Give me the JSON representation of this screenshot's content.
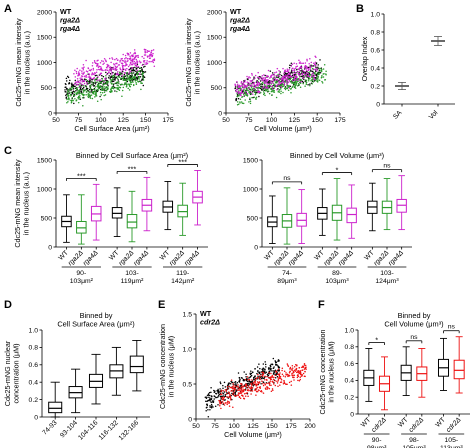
{
  "colors": {
    "wt": "#000000",
    "rga2": "#2a9a2a",
    "rga4": "#cc22cc",
    "cdr2": "#ee1111",
    "axis": "#000000"
  },
  "panels": {
    "A": "A",
    "B": "B",
    "C": "C",
    "D": "D",
    "E": "E",
    "F": "F"
  },
  "chart_data": [
    {
      "id": "A-left",
      "type": "scatter",
      "legend": [
        "WT",
        "rga2Δ",
        "rga4Δ"
      ],
      "xlabel": "Cell Surface Area (μm²)",
      "ylabel": [
        "Cdc25-mNG mean intensity",
        "in the nucleus (a.u.)"
      ],
      "xlim": [
        50,
        175
      ],
      "ylim": [
        0,
        2000
      ],
      "xticks": [
        "50",
        "75",
        "100",
        "125",
        "150",
        "175"
      ],
      "yticks": [
        "0",
        "500",
        "1000",
        "1500",
        "2000"
      ],
      "series": [
        {
          "name": "WT",
          "x_range": [
            60,
            150
          ],
          "y_center": [
            450,
            800
          ],
          "n": 350
        },
        {
          "name": "rga2Δ",
          "x_range": [
            62,
            148
          ],
          "y_center": [
            350,
            700
          ],
          "n": 350
        },
        {
          "name": "rga4Δ",
          "x_range": [
            70,
            160
          ],
          "y_center": [
            700,
            1150
          ],
          "n": 350
        }
      ]
    },
    {
      "id": "A-right",
      "type": "scatter",
      "legend": [
        "WT",
        "rga2Δ",
        "rga4Δ"
      ],
      "xlabel": "Cell Volume (μm³)",
      "ylabel": [
        "Cdc25-mNG mean intensity",
        "in the nucleus (a.u.)"
      ],
      "xlim": [
        50,
        175
      ],
      "ylim": [
        0,
        2000
      ],
      "xticks": [
        "50",
        "75",
        "100",
        "125",
        "150",
        "175"
      ],
      "yticks": [
        "0",
        "500",
        "1000",
        "1500",
        "2000"
      ],
      "series": [
        {
          "name": "WT",
          "x_range": [
            60,
            155
          ],
          "y_center": [
            420,
            850
          ],
          "n": 350
        },
        {
          "name": "rga2Δ",
          "x_range": [
            62,
            160
          ],
          "y_center": [
            360,
            780
          ],
          "n": 350
        },
        {
          "name": "rga4Δ",
          "x_range": [
            60,
            150
          ],
          "y_center": [
            450,
            900
          ],
          "n": 350
        }
      ]
    },
    {
      "id": "B",
      "type": "dot",
      "ylabel": "Overlap Index",
      "ylim": [
        0,
        1.0
      ],
      "yticks": [
        "0",
        "0.2",
        "0.4",
        "0.6",
        "0.8",
        "1.0"
      ],
      "categories": [
        "SA",
        "Vol"
      ],
      "values": [
        0.2,
        0.7
      ],
      "errors": [
        0.04,
        0.05
      ]
    },
    {
      "id": "C-left",
      "type": "box",
      "title": "Binned by Cell Surface Area (μm²)",
      "ylabel": [
        "Cdc25-mNG mean intensity",
        "in the nucleus (a.u.)"
      ],
      "ylim": [
        0,
        1500
      ],
      "yticks": [
        "0",
        "500",
        "1000",
        "1500"
      ],
      "strains": [
        "WT",
        "rga2Δ",
        "rga4Δ"
      ],
      "groups": [
        "90-103μm²",
        "103-119μm²",
        "119-142μm²"
      ],
      "significance": [
        "***",
        "***",
        "***"
      ],
      "boxes": [
        {
          "min": 80,
          "q1": 350,
          "med": 440,
          "q3": 530,
          "max": 900
        },
        {
          "min": 50,
          "q1": 240,
          "med": 330,
          "q3": 440,
          "max": 900
        },
        {
          "min": 120,
          "q1": 450,
          "med": 570,
          "q3": 700,
          "max": 1080
        },
        {
          "min": 180,
          "q1": 500,
          "med": 580,
          "q3": 680,
          "max": 1020
        },
        {
          "min": 90,
          "q1": 330,
          "med": 430,
          "q3": 560,
          "max": 960
        },
        {
          "min": 280,
          "q1": 620,
          "med": 720,
          "q3": 820,
          "max": 1200
        },
        {
          "min": 300,
          "q1": 600,
          "med": 690,
          "q3": 790,
          "max": 1130
        },
        {
          "min": 200,
          "q1": 520,
          "med": 610,
          "q3": 720,
          "max": 1100
        },
        {
          "min": 380,
          "q1": 760,
          "med": 860,
          "q3": 960,
          "max": 1320
        }
      ]
    },
    {
      "id": "C-right",
      "type": "box",
      "title": "Binned by Cell Volume (μm³)",
      "ylim": [
        0,
        1500
      ],
      "yticks": [
        "0",
        "500",
        "1000",
        "1500"
      ],
      "strains": [
        "WT",
        "rga2Δ",
        "rga4Δ"
      ],
      "groups": [
        "74-89μm³",
        "89-103μm³",
        "103-124μm³"
      ],
      "significance": [
        "ns",
        "*",
        "ns"
      ],
      "boxes": [
        {
          "min": 60,
          "q1": 350,
          "med": 430,
          "q3": 520,
          "max": 880
        },
        {
          "min": 50,
          "q1": 340,
          "med": 450,
          "q3": 560,
          "max": 1020
        },
        {
          "min": 60,
          "q1": 360,
          "med": 460,
          "q3": 580,
          "max": 990
        },
        {
          "min": 200,
          "q1": 480,
          "med": 580,
          "q3": 680,
          "max": 1000
        },
        {
          "min": 120,
          "q1": 460,
          "med": 590,
          "q3": 720,
          "max": 1180
        },
        {
          "min": 150,
          "q1": 420,
          "med": 560,
          "q3": 670,
          "max": 1070
        },
        {
          "min": 280,
          "q1": 580,
          "med": 690,
          "q3": 790,
          "max": 1100
        },
        {
          "min": 300,
          "q1": 580,
          "med": 680,
          "q3": 790,
          "max": 1180
        },
        {
          "min": 300,
          "q1": 600,
          "med": 720,
          "q3": 820,
          "max": 1230
        }
      ]
    },
    {
      "id": "D",
      "type": "box",
      "title": [
        "Binned by",
        "Cell Surface Area (μm²)"
      ],
      "ylabel": [
        "Cdc25-mNG nuclear",
        "concentration (μM)"
      ],
      "ylim": [
        0,
        1.0
      ],
      "yticks": [
        "0",
        "0.2",
        "0.4",
        "0.6",
        "0.8",
        "1.0"
      ],
      "categories": [
        "74-93",
        "93-104",
        "104-116",
        "116-132",
        "132-166"
      ],
      "boxes": [
        {
          "min": 0.0,
          "q1": 0.05,
          "med": 0.1,
          "q3": 0.17,
          "max": 0.4
        },
        {
          "min": 0.05,
          "q1": 0.22,
          "med": 0.28,
          "q3": 0.35,
          "max": 0.55
        },
        {
          "min": 0.15,
          "q1": 0.34,
          "med": 0.41,
          "q3": 0.49,
          "max": 0.72
        },
        {
          "min": 0.25,
          "q1": 0.45,
          "med": 0.53,
          "q3": 0.6,
          "max": 0.8
        },
        {
          "min": 0.3,
          "q1": 0.51,
          "med": 0.58,
          "q3": 0.7,
          "max": 0.88
        }
      ]
    },
    {
      "id": "E",
      "type": "scatter",
      "legend": [
        "WT",
        "cdr2Δ"
      ],
      "xlabel": "Cell Volume (μm³)",
      "ylabel": [
        "Cdc25-mNG concentration",
        "in the nucleus (μM)"
      ],
      "xlim": [
        50,
        200
      ],
      "ylim": [
        0,
        1.5
      ],
      "xticks": [
        "50",
        "75",
        "100",
        "125",
        "150",
        "175",
        "200"
      ],
      "yticks": [
        "0",
        "0.5",
        "1.0",
        "1.5"
      ],
      "series": [
        {
          "name": "WT",
          "x_range": [
            62,
            160
          ],
          "y_center": [
            0.25,
            0.75
          ],
          "n": 380
        },
        {
          "name": "cdr2Δ",
          "x_range": [
            80,
            195
          ],
          "y_center": [
            0.3,
            0.72
          ],
          "n": 380
        }
      ]
    },
    {
      "id": "F",
      "type": "box",
      "title": [
        "Binned by",
        "Cell Volume (μm³)"
      ],
      "ylabel": [
        "Cdc25-mNG concentration",
        "in the nucleus (μM)"
      ],
      "ylim": [
        0,
        1.0
      ],
      "yticks": [
        "0",
        "0.2",
        "0.4",
        "0.6",
        "0.8",
        "1.0"
      ],
      "strains": [
        "WT",
        "cdr2Δ"
      ],
      "groups": [
        "90-98μm³",
        "98-105μm³",
        "105-113μm³"
      ],
      "significance": [
        "*",
        "ns",
        "ns"
      ],
      "boxes": [
        {
          "min": 0.15,
          "q1": 0.34,
          "med": 0.43,
          "q3": 0.52,
          "max": 0.78
        },
        {
          "min": 0.05,
          "q1": 0.27,
          "med": 0.36,
          "q3": 0.45,
          "max": 0.68
        },
        {
          "min": 0.22,
          "q1": 0.4,
          "med": 0.49,
          "q3": 0.58,
          "max": 0.8
        },
        {
          "min": 0.2,
          "q1": 0.4,
          "med": 0.48,
          "q3": 0.56,
          "max": 0.78
        },
        {
          "min": 0.28,
          "q1": 0.45,
          "med": 0.55,
          "q3": 0.65,
          "max": 0.9
        },
        {
          "min": 0.25,
          "q1": 0.42,
          "med": 0.52,
          "q3": 0.64,
          "max": 0.92
        }
      ]
    }
  ]
}
